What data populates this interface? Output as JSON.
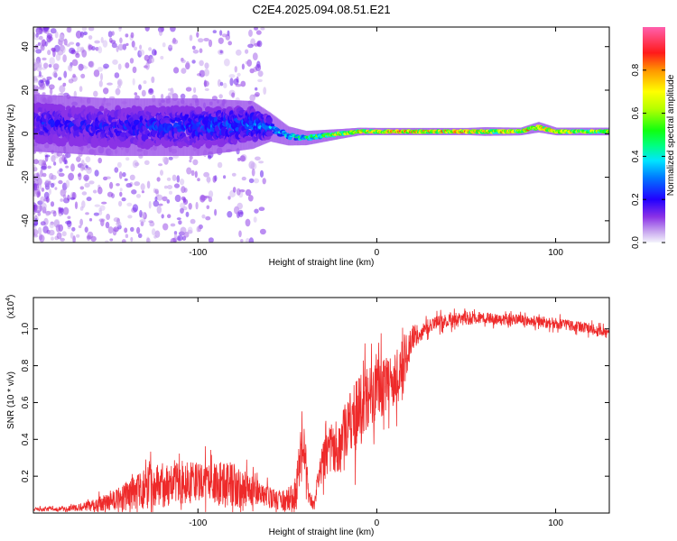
{
  "title": "C2E4.2025.094.08.51.E21",
  "colorbar": {
    "label": "Normalized spectral amplitude",
    "ticks": [
      "0.0",
      "0.2",
      "0.4",
      "0.6",
      "0.8"
    ],
    "tick_values": [
      0.0,
      0.2,
      0.4,
      0.6,
      0.8
    ],
    "range": [
      0,
      1
    ]
  },
  "chart_data": [
    {
      "type": "heatmap",
      "name": "spectrogram",
      "xlabel": "Height of straight line (km)",
      "ylabel": "Frequency (Hz)",
      "xlim": [
        -192,
        130
      ],
      "ylim": [
        -50,
        49
      ],
      "x_ticks": [
        -100,
        0,
        100
      ],
      "x_tick_labels": [
        "-100",
        "0",
        "100"
      ],
      "y_ticks": [
        -40,
        -20,
        0,
        20,
        40
      ],
      "y_tick_labels": [
        "-40",
        "-20",
        "0",
        "20",
        "40"
      ],
      "ridge": {
        "description_x": [
          -192,
          -150,
          -100,
          -70,
          -60,
          -50,
          -40,
          -30,
          -20,
          -10,
          0,
          20,
          50,
          60,
          80,
          90,
          100,
          130
        ],
        "frequency_hz": [
          5,
          3,
          3,
          4,
          3,
          -1,
          -2,
          -1,
          0,
          1,
          1,
          1,
          1,
          1,
          1,
          3,
          1,
          1
        ],
        "amplitude": [
          0.25,
          0.25,
          0.3,
          0.35,
          0.4,
          0.45,
          0.55,
          0.7,
          0.85,
          0.9,
          0.95,
          0.95,
          0.95,
          0.9,
          0.85,
          0.95,
          0.85,
          0.8
        ],
        "spread_hz": [
          12,
          12,
          12,
          10,
          6,
          4,
          3,
          2.5,
          2,
          1.6,
          1.5,
          1.5,
          1.5,
          1.8,
          1.6,
          2.2,
          1.6,
          1.6
        ]
      }
    },
    {
      "type": "line",
      "name": "snr",
      "xlabel": "Height of straight line (km)",
      "ylabel": "SNR (10 * v/v)",
      "y_multiplier": "(x10",
      "y_multiplier_exp": "4",
      "y_multiplier_close": ")",
      "xlim": [
        -192,
        130
      ],
      "ylim": [
        0,
        1.17
      ],
      "x_ticks": [
        -100,
        0,
        100
      ],
      "x_tick_labels": [
        "-100",
        "0",
        "100"
      ],
      "y_ticks": [
        0.2,
        0.4,
        0.6,
        0.8,
        1.0
      ],
      "y_tick_labels": [
        "0.2",
        "0.4",
        "0.6",
        "0.8",
        "1.0"
      ],
      "line_color": "#ee2a2a",
      "envelope_x": [
        -192,
        -170,
        -160,
        -150,
        -140,
        -130,
        -120,
        -110,
        -100,
        -90,
        -80,
        -70,
        -60,
        -50,
        -45,
        -43,
        -40,
        -38,
        -35,
        -30,
        -25,
        -20,
        -15,
        -10,
        -5,
        0,
        5,
        10,
        15,
        20,
        30,
        40,
        50,
        60,
        70,
        80,
        90,
        100,
        110,
        120,
        130
      ],
      "envelope_mean": [
        0.02,
        0.025,
        0.04,
        0.06,
        0.09,
        0.13,
        0.15,
        0.16,
        0.17,
        0.16,
        0.15,
        0.12,
        0.08,
        0.07,
        0.12,
        0.3,
        0.35,
        0.08,
        0.05,
        0.3,
        0.33,
        0.38,
        0.45,
        0.55,
        0.6,
        0.66,
        0.7,
        0.72,
        0.8,
        0.95,
        1.02,
        1.05,
        1.06,
        1.06,
        1.05,
        1.05,
        1.04,
        1.03,
        1.02,
        1.0,
        0.97
      ],
      "envelope_noise": [
        0.01,
        0.015,
        0.03,
        0.05,
        0.08,
        0.12,
        0.12,
        0.11,
        0.11,
        0.12,
        0.13,
        0.08,
        0.06,
        0.06,
        0.1,
        0.15,
        0.15,
        0.04,
        0.04,
        0.12,
        0.14,
        0.18,
        0.2,
        0.2,
        0.2,
        0.18,
        0.15,
        0.15,
        0.15,
        0.06,
        0.04,
        0.04,
        0.04,
        0.03,
        0.03,
        0.03,
        0.03,
        0.03,
        0.03,
        0.03,
        0.03
      ]
    }
  ]
}
